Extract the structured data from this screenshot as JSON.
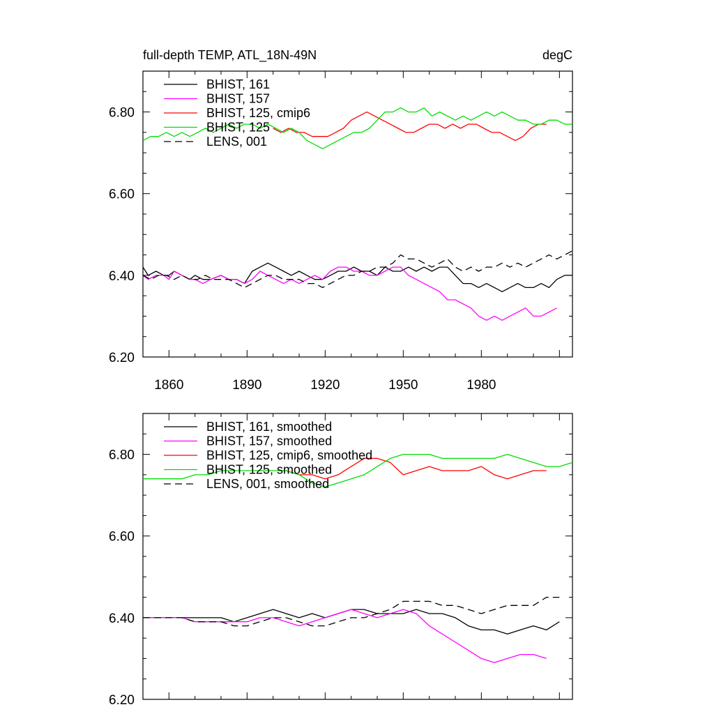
{
  "chart_data": [
    {
      "type": "line",
      "title_left": "full-depth TEMP, ATL_18N-49N",
      "title_right": "degC",
      "xlim": [
        1850,
        2015
      ],
      "ylim": [
        6.2,
        6.9
      ],
      "yticks": [
        6.2,
        6.4,
        6.6,
        6.8
      ],
      "ytick_labels": [
        "6.20",
        "6.40",
        "6.60",
        "6.80"
      ],
      "xticks": [
        1860,
        1890,
        1920,
        1950,
        1980
      ],
      "xtick_labels": [
        "1860",
        "1890",
        "1920",
        "1950",
        "1980"
      ],
      "series": [
        {
          "name": "BHIST, 161",
          "color": "#000000",
          "dash": "none",
          "x": [
            1850,
            1852,
            1855,
            1858,
            1860,
            1862,
            1865,
            1868,
            1870,
            1873,
            1876,
            1880,
            1883,
            1886,
            1889,
            1892,
            1895,
            1898,
            1901,
            1904,
            1907,
            1910,
            1913,
            1916,
            1919,
            1922,
            1925,
            1928,
            1931,
            1934,
            1937,
            1940,
            1943,
            1946,
            1949,
            1952,
            1955,
            1958,
            1961,
            1964,
            1967,
            1970,
            1973,
            1976,
            1979,
            1982,
            1985,
            1988,
            1991,
            1994,
            1997,
            2000,
            2003,
            2006,
            2009,
            2012,
            2015
          ],
          "values": [
            6.42,
            6.4,
            6.41,
            6.4,
            6.4,
            6.41,
            6.4,
            6.39,
            6.4,
            6.39,
            6.39,
            6.4,
            6.39,
            6.39,
            6.38,
            6.41,
            6.42,
            6.43,
            6.42,
            6.41,
            6.4,
            6.41,
            6.4,
            6.39,
            6.39,
            6.4,
            6.41,
            6.41,
            6.42,
            6.41,
            6.41,
            6.4,
            6.42,
            6.41,
            6.41,
            6.42,
            6.41,
            6.42,
            6.41,
            6.42,
            6.42,
            6.4,
            6.38,
            6.38,
            6.37,
            6.38,
            6.37,
            6.36,
            6.37,
            6.38,
            6.37,
            6.37,
            6.38,
            6.37,
            6.39,
            6.4,
            6.4
          ]
        },
        {
          "name": "BHIST, 157",
          "color": "#ff00ff",
          "dash": "none",
          "x": [
            1850,
            1852,
            1855,
            1858,
            1860,
            1862,
            1865,
            1868,
            1870,
            1873,
            1876,
            1880,
            1883,
            1886,
            1889,
            1892,
            1895,
            1898,
            1901,
            1904,
            1907,
            1910,
            1913,
            1916,
            1919,
            1922,
            1925,
            1928,
            1931,
            1934,
            1937,
            1940,
            1943,
            1946,
            1949,
            1952,
            1955,
            1958,
            1961,
            1964,
            1967,
            1970,
            1973,
            1976,
            1979,
            1982,
            1985,
            1988,
            1991,
            1994,
            1997,
            2000,
            2003,
            2006,
            2009
          ],
          "values": [
            6.4,
            6.39,
            6.4,
            6.4,
            6.39,
            6.41,
            6.4,
            6.39,
            6.39,
            6.38,
            6.39,
            6.4,
            6.39,
            6.39,
            6.38,
            6.39,
            6.41,
            6.4,
            6.39,
            6.38,
            6.39,
            6.38,
            6.39,
            6.4,
            6.39,
            6.41,
            6.42,
            6.42,
            6.41,
            6.41,
            6.4,
            6.4,
            6.41,
            6.42,
            6.42,
            6.4,
            6.39,
            6.38,
            6.37,
            6.36,
            6.34,
            6.34,
            6.33,
            6.32,
            6.3,
            6.29,
            6.3,
            6.29,
            6.3,
            6.31,
            6.32,
            6.3,
            6.3,
            6.31,
            6.32
          ]
        },
        {
          "name": "BHIST, 125, cmip6",
          "color": "#ff0000",
          "dash": "none",
          "x": [
            1900,
            1903,
            1906,
            1909,
            1912,
            1915,
            1918,
            1921,
            1924,
            1927,
            1930,
            1933,
            1936,
            1939,
            1942,
            1945,
            1948,
            1951,
            1954,
            1957,
            1960,
            1963,
            1966,
            1969,
            1972,
            1975,
            1978,
            1981,
            1984,
            1987,
            1990,
            1993,
            1996,
            1999,
            2002,
            2005
          ],
          "values": [
            6.76,
            6.75,
            6.76,
            6.75,
            6.75,
            6.74,
            6.74,
            6.74,
            6.75,
            6.76,
            6.78,
            6.79,
            6.8,
            6.79,
            6.78,
            6.77,
            6.76,
            6.75,
            6.75,
            6.76,
            6.77,
            6.77,
            6.76,
            6.77,
            6.76,
            6.77,
            6.77,
            6.76,
            6.75,
            6.75,
            6.74,
            6.73,
            6.74,
            6.76,
            6.77,
            6.77
          ]
        },
        {
          "name": "BHIST, 125",
          "color": "#00dd00",
          "dash": "none",
          "x": [
            1850,
            1853,
            1856,
            1859,
            1862,
            1865,
            1868,
            1871,
            1874,
            1877,
            1880,
            1883,
            1886,
            1889,
            1892,
            1895,
            1898,
            1901,
            1904,
            1907,
            1910,
            1913,
            1916,
            1919,
            1922,
            1925,
            1928,
            1931,
            1934,
            1937,
            1940,
            1943,
            1946,
            1949,
            1952,
            1955,
            1958,
            1961,
            1964,
            1967,
            1970,
            1973,
            1976,
            1979,
            1982,
            1985,
            1988,
            1991,
            1994,
            1997,
            2000,
            2003,
            2006,
            2009,
            2012,
            2015
          ],
          "values": [
            6.73,
            6.74,
            6.74,
            6.75,
            6.74,
            6.75,
            6.74,
            6.75,
            6.76,
            6.75,
            6.76,
            6.77,
            6.76,
            6.77,
            6.77,
            6.76,
            6.77,
            6.76,
            6.75,
            6.76,
            6.75,
            6.73,
            6.72,
            6.71,
            6.72,
            6.73,
            6.74,
            6.75,
            6.75,
            6.76,
            6.78,
            6.8,
            6.8,
            6.81,
            6.8,
            6.8,
            6.81,
            6.79,
            6.8,
            6.79,
            6.78,
            6.79,
            6.78,
            6.79,
            6.8,
            6.79,
            6.8,
            6.79,
            6.78,
            6.78,
            6.77,
            6.77,
            6.78,
            6.78,
            6.77,
            6.77
          ]
        },
        {
          "name": "LENS, 001",
          "color": "#000000",
          "dash": "10,6",
          "x": [
            1850,
            1853,
            1856,
            1859,
            1862,
            1865,
            1868,
            1871,
            1874,
            1877,
            1880,
            1883,
            1886,
            1889,
            1892,
            1895,
            1898,
            1901,
            1904,
            1907,
            1910,
            1913,
            1916,
            1919,
            1922,
            1925,
            1928,
            1931,
            1934,
            1937,
            1940,
            1943,
            1946,
            1949,
            1952,
            1955,
            1958,
            1961,
            1964,
            1967,
            1970,
            1973,
            1976,
            1979,
            1982,
            1985,
            1988,
            1991,
            1994,
            1997,
            2000,
            2003,
            2006,
            2009,
            2012,
            2015
          ],
          "values": [
            6.4,
            6.39,
            6.4,
            6.4,
            6.39,
            6.4,
            6.39,
            6.39,
            6.4,
            6.39,
            6.39,
            6.39,
            6.38,
            6.37,
            6.38,
            6.39,
            6.4,
            6.4,
            6.39,
            6.39,
            6.39,
            6.38,
            6.38,
            6.37,
            6.38,
            6.39,
            6.4,
            6.4,
            6.41,
            6.41,
            6.42,
            6.42,
            6.43,
            6.45,
            6.44,
            6.44,
            6.43,
            6.42,
            6.43,
            6.44,
            6.42,
            6.41,
            6.42,
            6.41,
            6.42,
            6.42,
            6.43,
            6.42,
            6.43,
            6.42,
            6.43,
            6.44,
            6.45,
            6.44,
            6.45,
            6.46
          ]
        }
      ]
    },
    {
      "type": "line",
      "title_left": "",
      "title_right": "",
      "xlim": [
        1850,
        2015
      ],
      "ylim": [
        6.2,
        6.9
      ],
      "yticks": [
        6.2,
        6.4,
        6.6,
        6.8
      ],
      "ytick_labels": [
        "6.20",
        "6.40",
        "6.60",
        "6.80"
      ],
      "xticks": [
        1860,
        1890,
        1920,
        1950,
        1980
      ],
      "xtick_labels": [],
      "series": [
        {
          "name": "BHIST, 161, smoothed",
          "color": "#000000",
          "dash": "none",
          "x": [
            1850,
            1855,
            1860,
            1865,
            1870,
            1875,
            1880,
            1885,
            1890,
            1895,
            1900,
            1905,
            1910,
            1915,
            1920,
            1925,
            1930,
            1935,
            1940,
            1945,
            1950,
            1955,
            1960,
            1965,
            1970,
            1975,
            1980,
            1985,
            1990,
            1995,
            2000,
            2005,
            2010
          ],
          "values": [
            6.4,
            6.4,
            6.4,
            6.4,
            6.4,
            6.4,
            6.4,
            6.39,
            6.4,
            6.41,
            6.42,
            6.41,
            6.4,
            6.41,
            6.4,
            6.41,
            6.42,
            6.42,
            6.41,
            6.41,
            6.41,
            6.42,
            6.41,
            6.41,
            6.4,
            6.38,
            6.37,
            6.37,
            6.36,
            6.37,
            6.38,
            6.37,
            6.39
          ]
        },
        {
          "name": "BHIST, 157, smoothed",
          "color": "#ff00ff",
          "dash": "none",
          "x": [
            1850,
            1855,
            1860,
            1865,
            1870,
            1875,
            1880,
            1885,
            1890,
            1895,
            1900,
            1905,
            1910,
            1915,
            1920,
            1925,
            1930,
            1935,
            1940,
            1945,
            1950,
            1955,
            1960,
            1965,
            1970,
            1975,
            1980,
            1985,
            1990,
            1995,
            2000,
            2005
          ],
          "values": [
            6.4,
            6.4,
            6.4,
            6.4,
            6.39,
            6.39,
            6.39,
            6.39,
            6.39,
            6.4,
            6.4,
            6.39,
            6.38,
            6.39,
            6.4,
            6.41,
            6.42,
            6.41,
            6.4,
            6.41,
            6.42,
            6.41,
            6.38,
            6.36,
            6.34,
            6.32,
            6.3,
            6.29,
            6.3,
            6.31,
            6.31,
            6.3
          ]
        },
        {
          "name": "BHIST, 125, cmip6, smoothed",
          "color": "#ff0000",
          "dash": "none",
          "x": [
            1905,
            1910,
            1915,
            1920,
            1925,
            1930,
            1935,
            1940,
            1945,
            1950,
            1955,
            1960,
            1965,
            1970,
            1975,
            1980,
            1985,
            1990,
            1995,
            2000,
            2005
          ],
          "values": [
            6.76,
            6.75,
            6.75,
            6.74,
            6.75,
            6.77,
            6.79,
            6.79,
            6.78,
            6.75,
            6.76,
            6.77,
            6.76,
            6.76,
            6.76,
            6.77,
            6.75,
            6.74,
            6.75,
            6.76,
            6.76
          ]
        },
        {
          "name": "BHIST, 125, smoothed",
          "color": "#00dd00",
          "dash": "none",
          "x": [
            1850,
            1855,
            1860,
            1865,
            1870,
            1875,
            1880,
            1885,
            1890,
            1895,
            1900,
            1905,
            1910,
            1915,
            1920,
            1925,
            1930,
            1935,
            1940,
            1945,
            1950,
            1955,
            1960,
            1965,
            1970,
            1975,
            1980,
            1985,
            1990,
            1995,
            2000,
            2005,
            2010,
            2015
          ],
          "values": [
            6.74,
            6.74,
            6.74,
            6.74,
            6.75,
            6.75,
            6.76,
            6.76,
            6.76,
            6.76,
            6.76,
            6.76,
            6.75,
            6.73,
            6.72,
            6.73,
            6.74,
            6.75,
            6.77,
            6.79,
            6.8,
            6.8,
            6.8,
            6.79,
            6.79,
            6.79,
            6.79,
            6.79,
            6.8,
            6.79,
            6.78,
            6.77,
            6.77,
            6.78
          ]
        },
        {
          "name": "LENS, 001, smoothed",
          "color": "#000000",
          "dash": "10,6",
          "x": [
            1850,
            1855,
            1860,
            1865,
            1870,
            1875,
            1880,
            1885,
            1890,
            1895,
            1900,
            1905,
            1910,
            1915,
            1920,
            1925,
            1930,
            1935,
            1940,
            1945,
            1950,
            1955,
            1960,
            1965,
            1970,
            1975,
            1980,
            1985,
            1990,
            1995,
            2000,
            2005,
            2010
          ],
          "values": [
            6.4,
            6.4,
            6.4,
            6.4,
            6.39,
            6.39,
            6.39,
            6.38,
            6.38,
            6.39,
            6.4,
            6.4,
            6.39,
            6.38,
            6.38,
            6.39,
            6.4,
            6.4,
            6.41,
            6.42,
            6.44,
            6.44,
            6.44,
            6.43,
            6.43,
            6.42,
            6.41,
            6.42,
            6.43,
            6.43,
            6.43,
            6.45,
            6.45
          ]
        }
      ]
    }
  ]
}
